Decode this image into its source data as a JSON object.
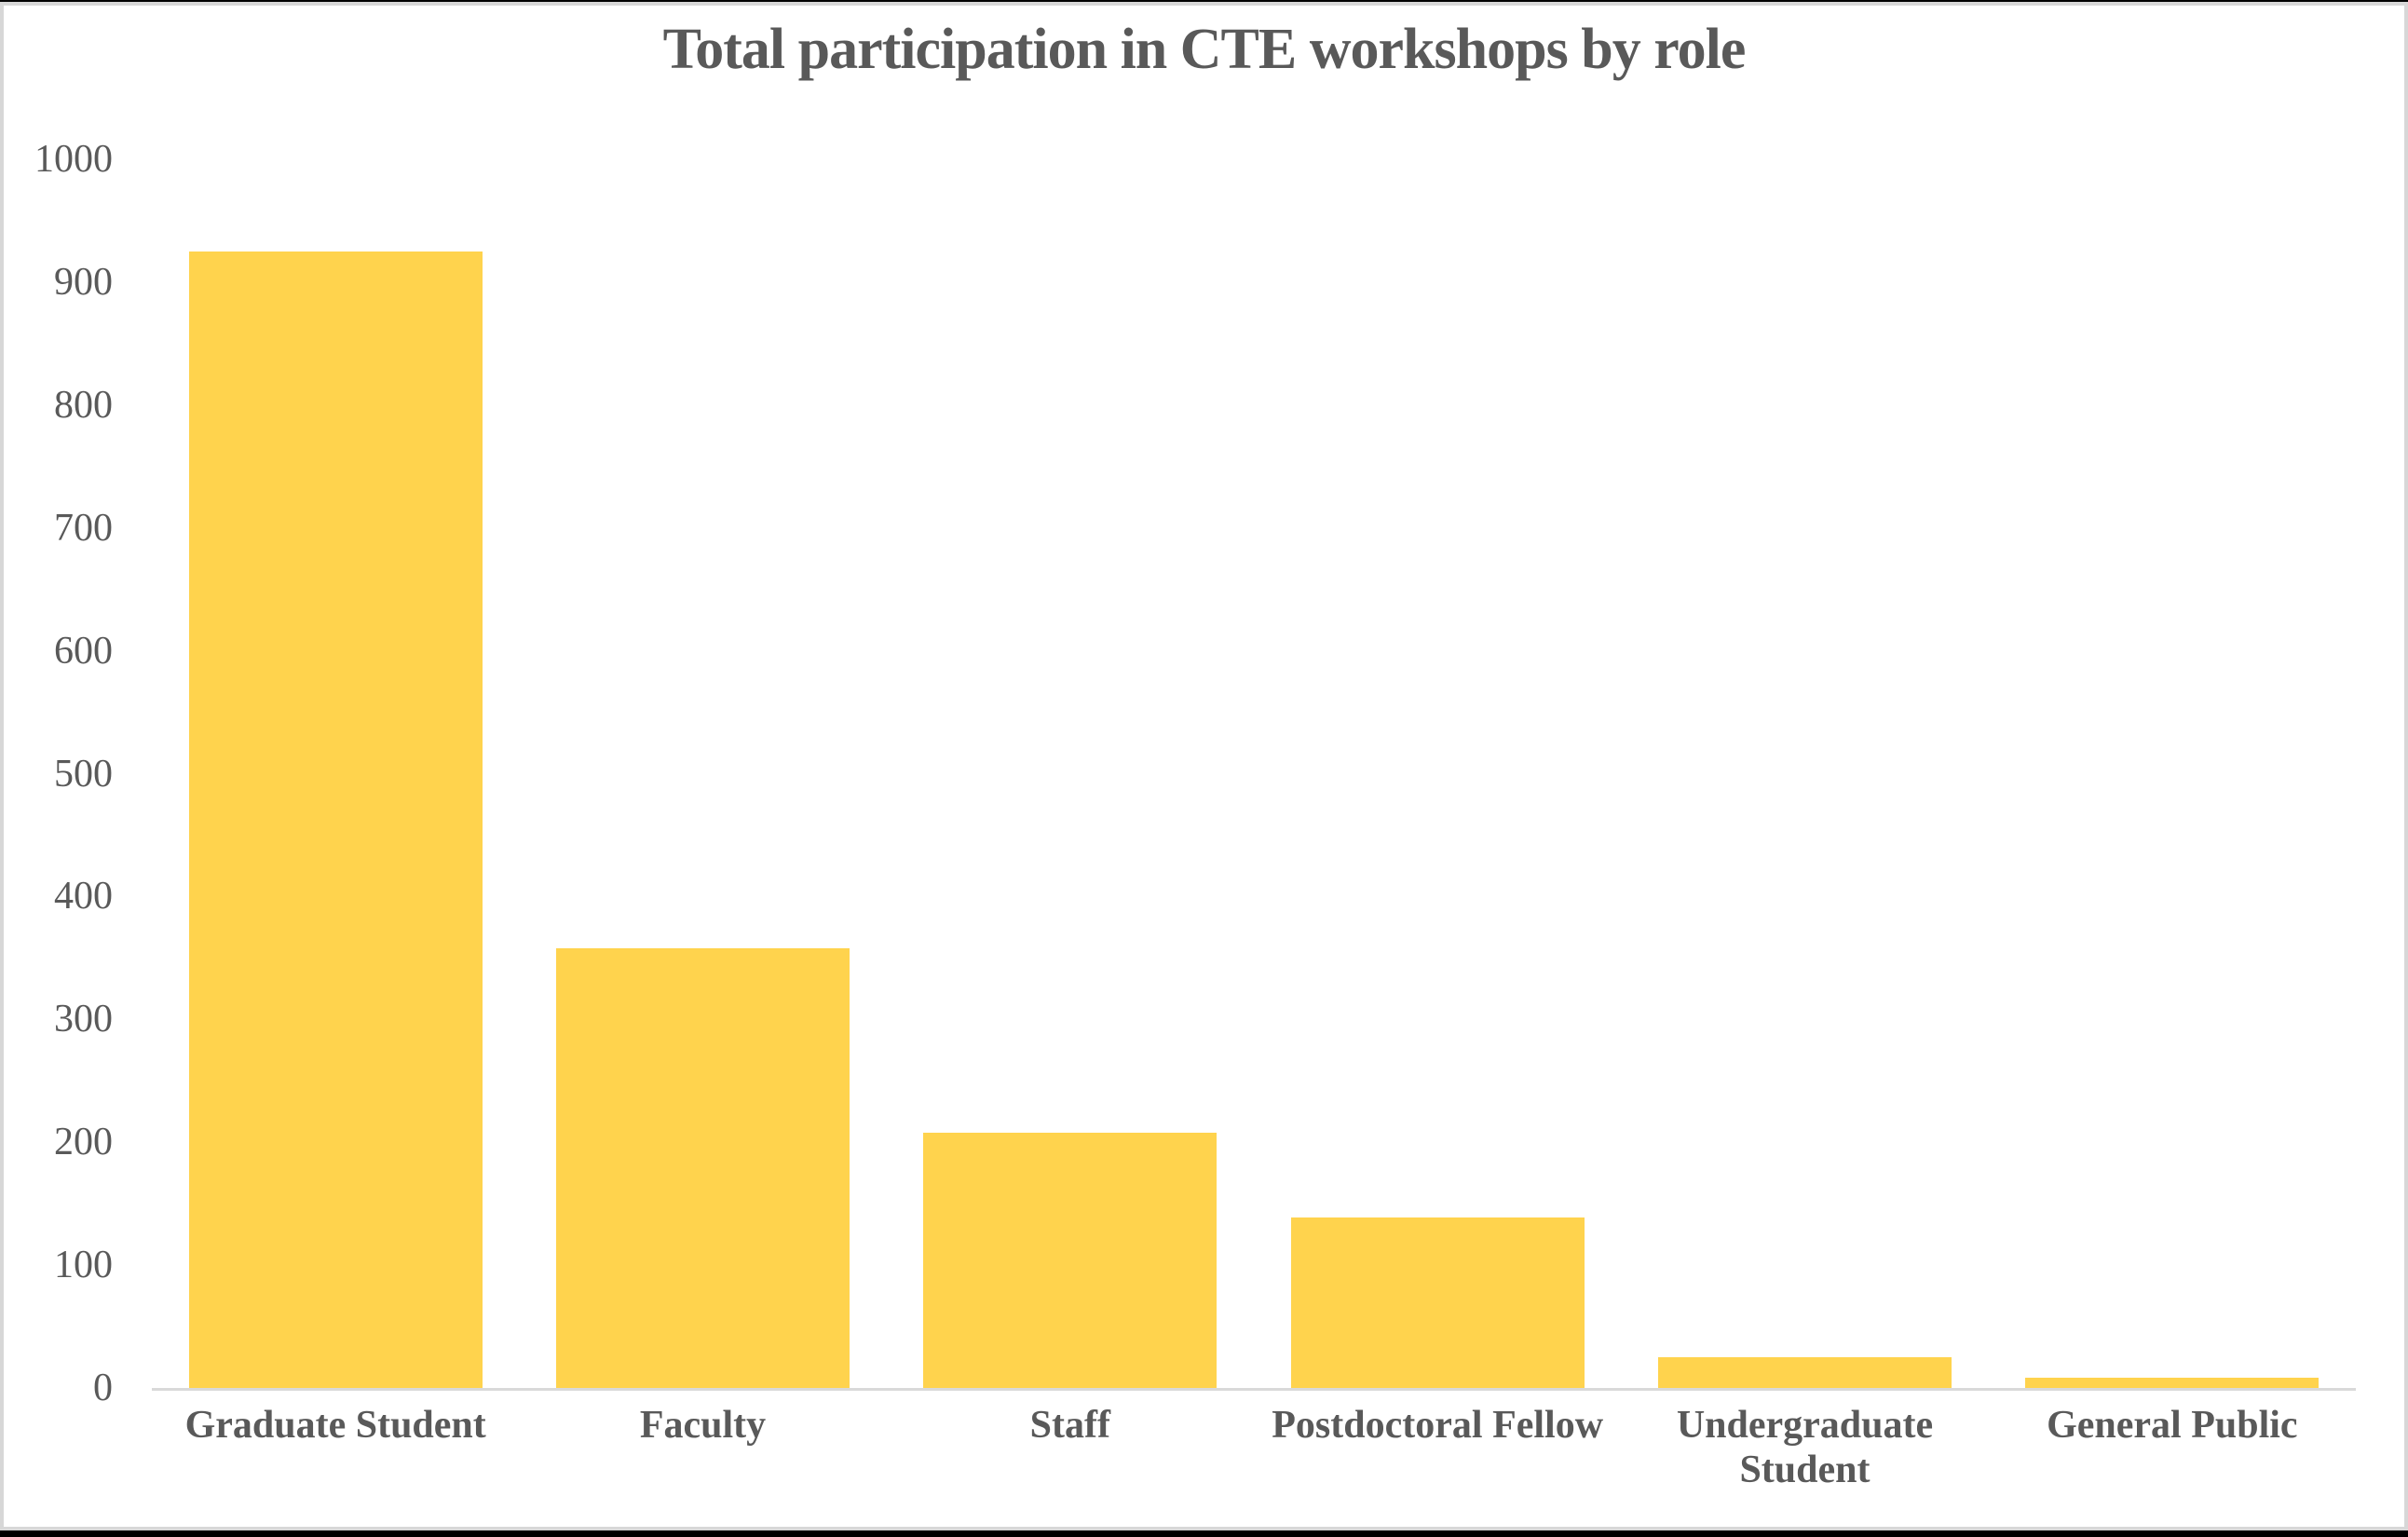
{
  "chart_data": {
    "type": "bar",
    "title": "Total participation in CTE workshops by role",
    "categories": [
      "Graduate Student",
      "Faculty",
      "Staff",
      "Postdoctoral Fellow",
      "Undergraduate Student",
      "General Public"
    ],
    "values": [
      925,
      358,
      208,
      139,
      25,
      8
    ],
    "xlabel": "",
    "ylabel": "",
    "ylim": [
      0,
      1000
    ],
    "ytick_interval": 100,
    "yticks": [
      1000,
      900,
      800,
      700,
      600,
      500,
      400,
      300,
      200,
      100,
      0
    ],
    "grid": "off",
    "legend": "none",
    "bar_color": "#FFD34D",
    "text_color": "#595959",
    "axis_line_color": "#D9D9D9",
    "background_color": "#FFFFFF",
    "frame_color": "#D7D7D7"
  }
}
